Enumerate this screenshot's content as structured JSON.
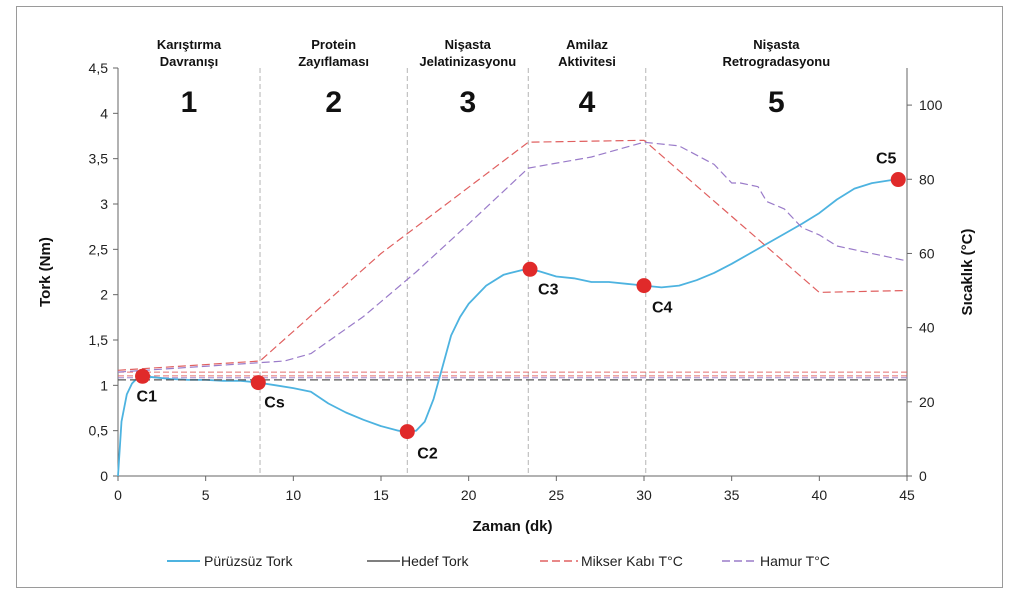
{
  "chart_data": {
    "type": "line",
    "xlabel": "Zaman (dk)",
    "ylabel": "Tork (Nm)",
    "y2label": "Sıcaklık (°C)",
    "xlim": [
      0,
      45
    ],
    "ylim": [
      0,
      4.5
    ],
    "y2lim": [
      0,
      110
    ],
    "x_ticks": [
      "0",
      "5",
      "10",
      "15",
      "20",
      "25",
      "30",
      "35",
      "40",
      "45"
    ],
    "y_ticks": [
      "0",
      "0,5",
      "1",
      "1,5",
      "2",
      "2,5",
      "3",
      "3,5",
      "4",
      "4,5"
    ],
    "y2_ticks": [
      "0",
      "20",
      "40",
      "60",
      "80",
      "100"
    ],
    "phases": [
      {
        "number": "1",
        "line1": "Karıştırma",
        "line2": "Davranışı",
        "start": 0,
        "end": 8.1
      },
      {
        "number": "2",
        "line1": "Protein",
        "line2": "Zayıflaması",
        "start": 8.1,
        "end": 16.5
      },
      {
        "number": "3",
        "line1": "Nişasta",
        "line2": "Jelatinizasyonu",
        "start": 16.5,
        "end": 23.4
      },
      {
        "number": "4",
        "line1": "Amilaz",
        "line2": "Aktivitesi",
        "start": 23.4,
        "end": 30.1
      },
      {
        "number": "5",
        "line1": "Nişasta",
        "line2": "Retrogradasyonu",
        "start": 30.1,
        "end": 45
      }
    ],
    "key_points": [
      {
        "label": "C1",
        "x": 1.4,
        "y": 1.1
      },
      {
        "label": "Cs",
        "x": 8.0,
        "y": 1.03
      },
      {
        "label": "C2",
        "x": 16.5,
        "y": 0.49
      },
      {
        "label": "C3",
        "x": 23.5,
        "y": 2.28
      },
      {
        "label": "C4",
        "x": 30.0,
        "y": 2.1
      },
      {
        "label": "C5",
        "x": 44.5,
        "y": 3.27
      }
    ],
    "series": [
      {
        "name": "Pürüzsüz Tork",
        "color": "#4db3e0",
        "axis": "left",
        "style": "solid",
        "x": [
          0,
          0.2,
          0.5,
          0.8,
          1.1,
          1.4,
          2,
          3,
          4,
          5,
          6,
          7,
          8,
          9,
          10,
          11,
          12,
          13,
          14,
          15,
          16,
          16.5,
          17,
          17.5,
          18,
          18.5,
          19,
          19.5,
          20,
          21,
          22,
          23,
          23.5,
          24,
          25,
          26,
          27,
          28,
          29,
          30,
          31,
          32,
          33,
          34,
          35,
          36,
          37,
          38,
          39,
          40,
          41,
          42,
          43,
          44,
          44.5
        ],
        "y": [
          0,
          0.6,
          0.9,
          1.02,
          1.08,
          1.1,
          1.09,
          1.07,
          1.06,
          1.06,
          1.05,
          1.05,
          1.03,
          1.0,
          0.97,
          0.93,
          0.8,
          0.7,
          0.62,
          0.55,
          0.5,
          0.49,
          0.5,
          0.6,
          0.85,
          1.2,
          1.55,
          1.75,
          1.9,
          2.1,
          2.22,
          2.27,
          2.28,
          2.26,
          2.2,
          2.18,
          2.14,
          2.14,
          2.12,
          2.1,
          2.08,
          2.1,
          2.16,
          2.24,
          2.34,
          2.45,
          2.56,
          2.67,
          2.78,
          2.9,
          3.05,
          3.17,
          3.23,
          3.26,
          3.27
        ]
      },
      {
        "name": "Hedef Tork",
        "color": "#555555",
        "axis": "left",
        "style": "dashed",
        "x": [
          0,
          45
        ],
        "y": [
          1.06,
          1.06
        ]
      },
      {
        "name": "Mikser Kabı T°C",
        "color": "#e06060",
        "axis": "right",
        "style": "dashed",
        "x": [
          0,
          8.1,
          15,
          23.4,
          30,
          40,
          45
        ],
        "y": [
          28.5,
          31,
          60,
          90,
          90.5,
          49.5,
          50
        ]
      },
      {
        "name": "Hamur T°C",
        "color": "#9a7bc9",
        "axis": "right",
        "style": "dashed",
        "x": [
          0,
          9.5,
          11,
          14,
          17,
          20,
          23.4,
          27,
          30,
          32,
          34,
          35,
          35.5,
          36.5,
          37,
          38,
          39,
          40,
          41,
          43,
          45
        ],
        "y": [
          28,
          31,
          33,
          43,
          55,
          68,
          83,
          86,
          90,
          89,
          84,
          79,
          79,
          78,
          74,
          72,
          67,
          65,
          62,
          60,
          58
        ]
      }
    ],
    "reference_lines": [
      {
        "color": "#e06060",
        "axis": "right",
        "y": 28
      },
      {
        "color": "#e06060",
        "axis": "right",
        "y": 27
      },
      {
        "color": "#9a7bc9",
        "axis": "right",
        "y": 26.5
      }
    ],
    "legend_position": "bottom"
  }
}
